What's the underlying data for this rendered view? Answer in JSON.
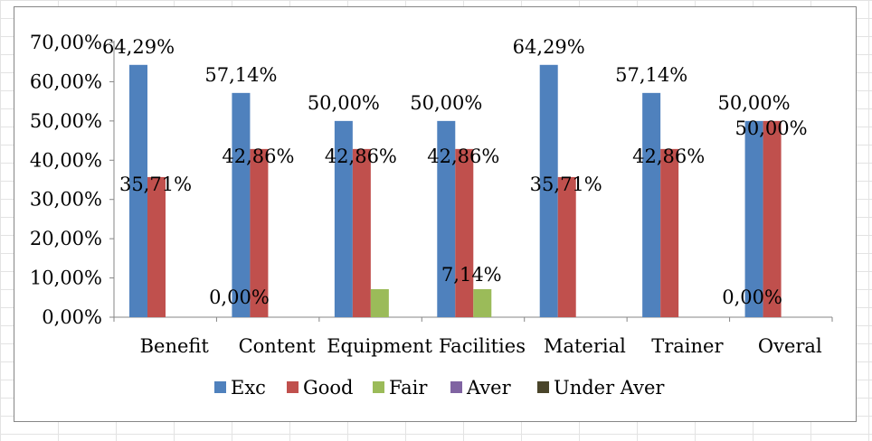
{
  "chart_data": {
    "type": "bar",
    "title": "",
    "xlabel": "",
    "ylabel": "",
    "ylim": [
      0,
      0.7
    ],
    "y_ticks": [
      {
        "value": 0.0,
        "label": "0,00%"
      },
      {
        "value": 0.1,
        "label": "10,00%"
      },
      {
        "value": 0.2,
        "label": "20,00%"
      },
      {
        "value": 0.3,
        "label": "30,00%"
      },
      {
        "value": 0.4,
        "label": "40,00%"
      },
      {
        "value": 0.5,
        "label": "50,00%"
      },
      {
        "value": 0.6,
        "label": "60,00%"
      },
      {
        "value": 0.7,
        "label": "70,00%"
      }
    ],
    "grid": false,
    "legend_position": "bottom",
    "categories": [
      "Benefit",
      "Content",
      "Equipment",
      "Facilities",
      "Material",
      "Trainer",
      "Overal"
    ],
    "series": [
      {
        "name": "Exc",
        "color": "#4F81BD",
        "values": [
          0.6429,
          0.5714,
          0.5,
          0.5,
          0.6429,
          0.5714,
          0.5
        ],
        "labels": [
          "64,29%",
          "57,14%",
          "50,00%",
          "50,00%",
          "64,29%",
          "57,14%",
          "50,00%"
        ]
      },
      {
        "name": "Good",
        "color": "#C0504D",
        "values": [
          0.3571,
          0.4286,
          0.4286,
          0.4286,
          0.3571,
          0.4286,
          0.5
        ],
        "labels": [
          "35,71%",
          "42,86%",
          "42,86%",
          "42,86%",
          "35,71%",
          "42,86%",
          "50,00%"
        ]
      },
      {
        "name": "Fair",
        "color": "#9BBB59",
        "values": [
          null,
          0.0,
          0.0714,
          0.0714,
          null,
          null,
          0.0
        ],
        "labels": [
          null,
          "0,00%",
          null,
          "7,14%",
          null,
          null,
          "0,00%"
        ]
      },
      {
        "name": "Aver",
        "color": "#8064A2",
        "values": [
          null,
          null,
          null,
          null,
          null,
          null,
          null
        ],
        "labels": [
          null,
          null,
          null,
          null,
          null,
          null,
          null
        ]
      },
      {
        "name": "Under Aver",
        "color": "#4A452A",
        "values": [
          null,
          null,
          null,
          null,
          null,
          null,
          null
        ],
        "labels": [
          null,
          null,
          null,
          null,
          null,
          null,
          null
        ]
      }
    ]
  }
}
